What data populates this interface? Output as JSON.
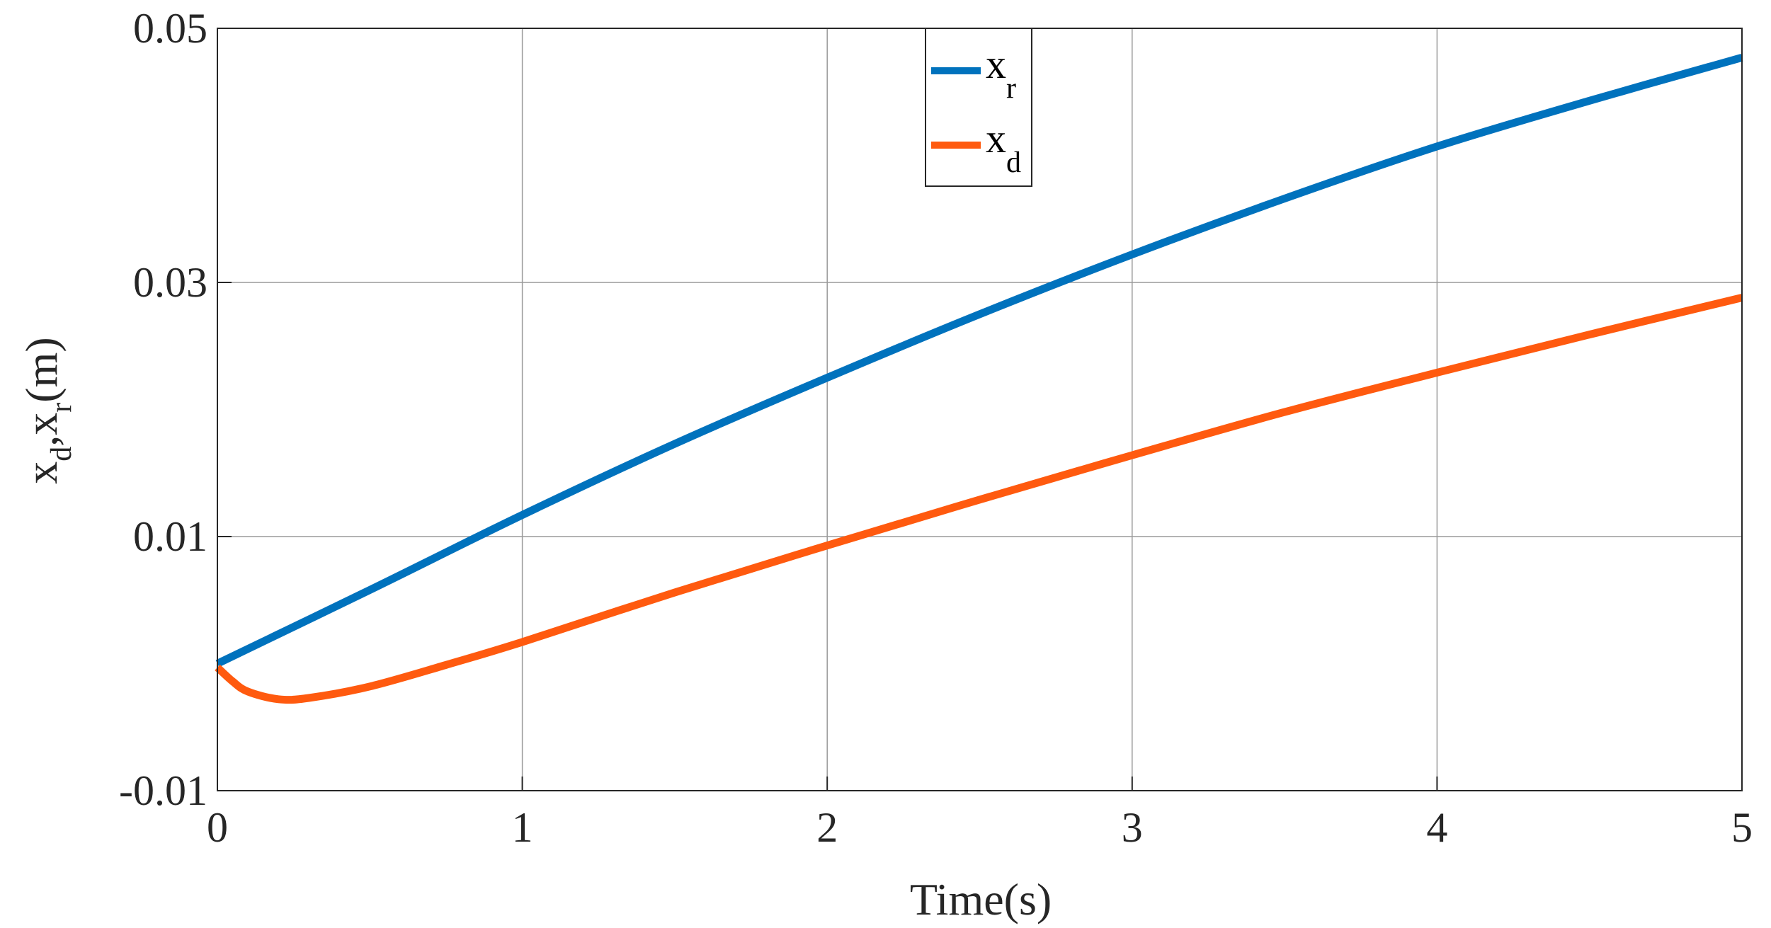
{
  "chart_data": {
    "type": "line",
    "xlabel": "Time(s)",
    "ylabel": {
      "parts": [
        "x",
        "d",
        ",x",
        "r",
        "(m)"
      ]
    },
    "xlim": [
      0,
      5
    ],
    "ylim": [
      -0.01,
      0.05
    ],
    "xticks": [
      0,
      1,
      2,
      3,
      4,
      5
    ],
    "xtick_labels": [
      "0",
      "1",
      "2",
      "3",
      "4",
      "5"
    ],
    "yticks": [
      -0.01,
      0.01,
      0.03,
      0.05
    ],
    "ytick_labels": [
      "-0.01",
      "0.01",
      "0.03",
      "0.05"
    ],
    "grid": true,
    "legend_position": "top-center",
    "series": [
      {
        "name": {
          "base": "x",
          "sub": "r"
        },
        "color": "#0072BD",
        "x": [
          0,
          0.5,
          1,
          1.5,
          2,
          2.5,
          3,
          3.5,
          4,
          4.5,
          5
        ],
        "y": [
          0.0,
          0.0058,
          0.0117,
          0.0173,
          0.0225,
          0.0275,
          0.0322,
          0.0366,
          0.0407,
          0.0443,
          0.0477
        ]
      },
      {
        "name": {
          "base": "x",
          "sub": "d"
        },
        "color": "#FF5A0F",
        "x": [
          0,
          0.05,
          0.1,
          0.2,
          0.3,
          0.5,
          0.75,
          1,
          1.5,
          2,
          2.5,
          3,
          3.5,
          4,
          4.5,
          5
        ],
        "y": [
          -0.0003,
          -0.0014,
          -0.0022,
          -0.0028,
          -0.0027,
          -0.0018,
          -0.0001,
          0.0017,
          0.0056,
          0.0093,
          0.0129,
          0.0164,
          0.0198,
          0.0229,
          0.0259,
          0.0288
        ]
      }
    ]
  }
}
